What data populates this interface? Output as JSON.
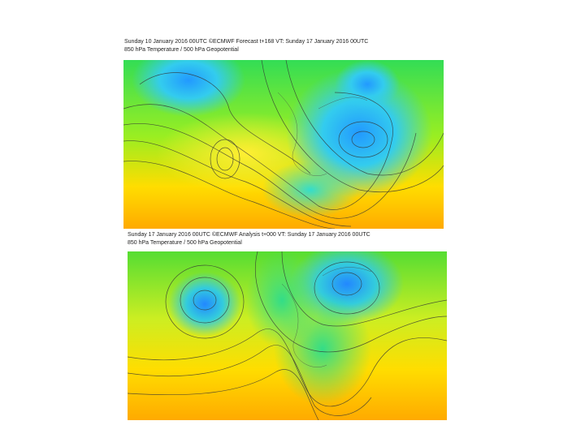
{
  "maps": [
    {
      "title": "Sunday 10 January 2016 00UTC ©ECMWF Forecast t+168 VT: Sunday 17 January 2016 00UTC",
      "subtitle": "850 hPa Temperature / 500 hPa Geopotential"
    },
    {
      "title": "Sunday 17 January 2016 00UTC ©ECMWF Analysis t+000 VT: Sunday 17 January 2016 00UTC",
      "subtitle": "850 hPa Temperature / 500 hPa Geopotential"
    }
  ]
}
